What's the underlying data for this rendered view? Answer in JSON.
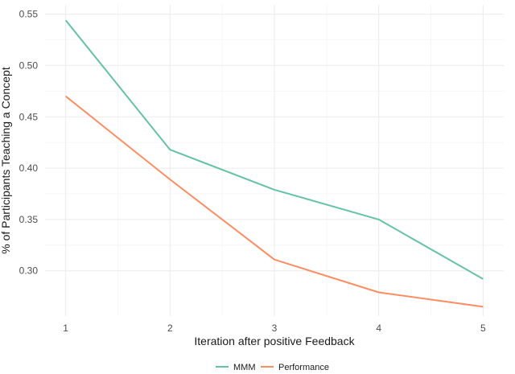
{
  "chart_data": {
    "type": "line",
    "title": "",
    "xlabel": "Iteration after positive Feedback",
    "ylabel": "% of Participants Teaching a Concept",
    "x": [
      1,
      2,
      3,
      4,
      5
    ],
    "xticks": [
      "1",
      "2",
      "3",
      "4",
      "5"
    ],
    "yticks": [
      "0.30",
      "0.35",
      "0.40",
      "0.45",
      "0.50",
      "0.55"
    ],
    "xlim": [
      1,
      5
    ],
    "ylim": [
      0.265,
      0.55
    ],
    "grid": true,
    "legend_position": "bottom",
    "series": [
      {
        "name": "MMM",
        "color": "#66c2a5",
        "values": [
          0.544,
          0.418,
          0.379,
          0.35,
          0.292
        ]
      },
      {
        "name": "Performance",
        "color": "#fc8d62",
        "values": [
          0.47,
          0.389,
          0.311,
          0.279,
          0.265
        ]
      }
    ]
  }
}
